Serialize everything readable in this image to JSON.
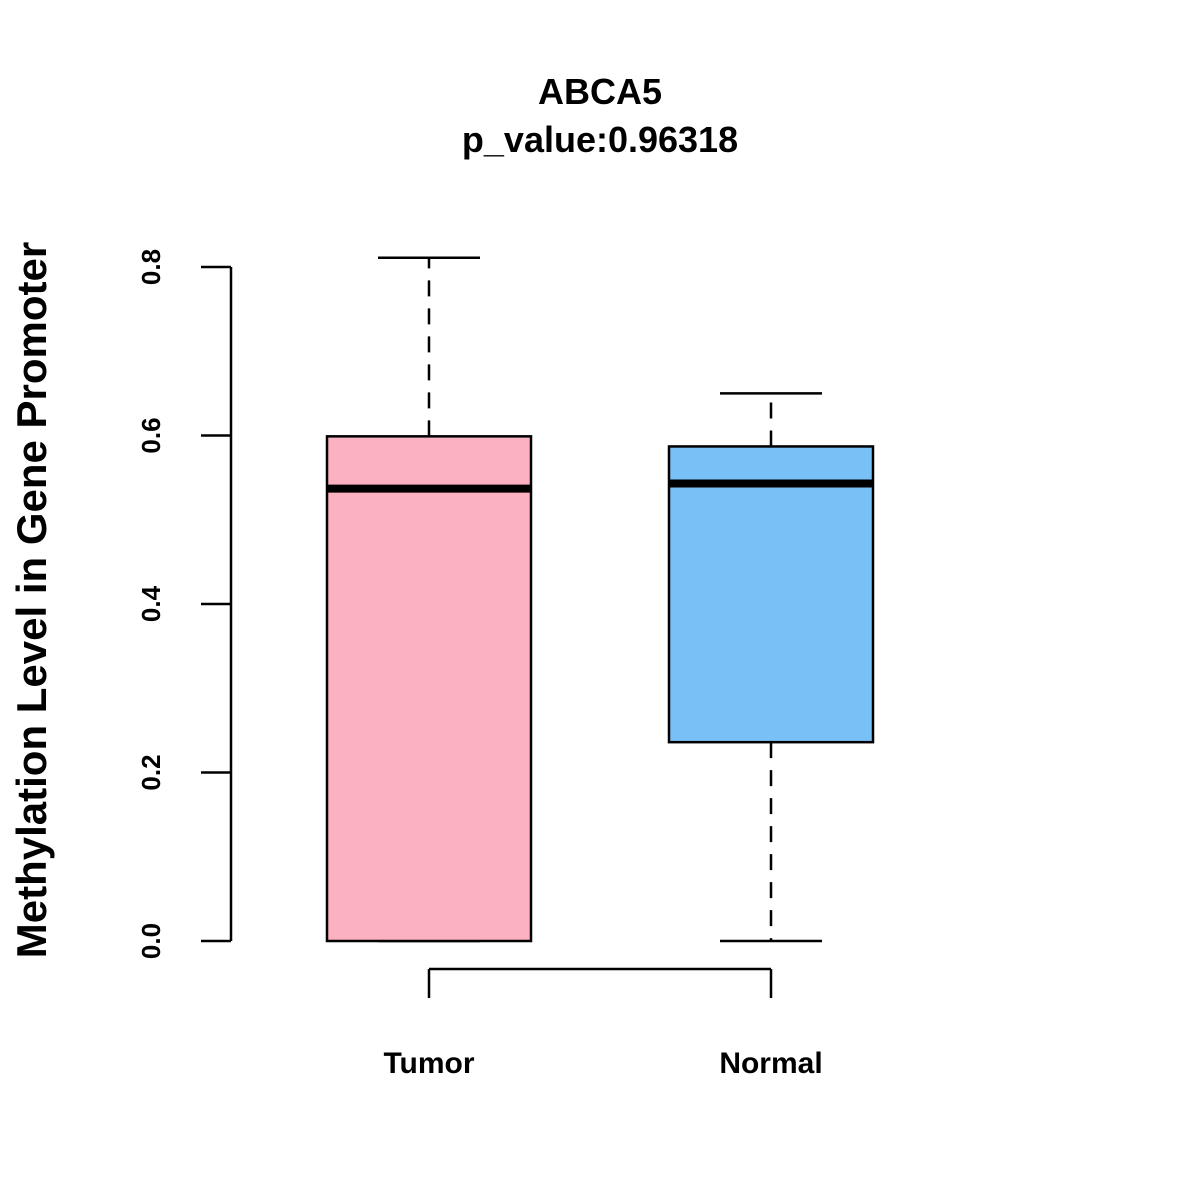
{
  "chart_data": {
    "type": "box",
    "title": "ABCA5",
    "subtitle": "p_value:0.96318",
    "xlabel": "",
    "ylabel": "Methylation Level in Gene Promoter",
    "ylim": [
      0,
      0.8
    ],
    "yticks": [
      0.0,
      0.2,
      0.4,
      0.6,
      0.8
    ],
    "ytick_labels": [
      "0.0",
      "0.2",
      "0.4",
      "0.6",
      "0.8"
    ],
    "grid": false,
    "categories": [
      "Tumor",
      "Normal"
    ],
    "boxes": [
      {
        "name": "Tumor",
        "min": 0.0,
        "q1": 0.0,
        "median": 0.537,
        "q3": 0.599,
        "max": 0.811,
        "color": "#FBB1C2"
      },
      {
        "name": "Normal",
        "min": 0.0,
        "q1": 0.236,
        "median": 0.543,
        "q3": 0.587,
        "max": 0.65,
        "color": "#78C1F7"
      }
    ]
  }
}
